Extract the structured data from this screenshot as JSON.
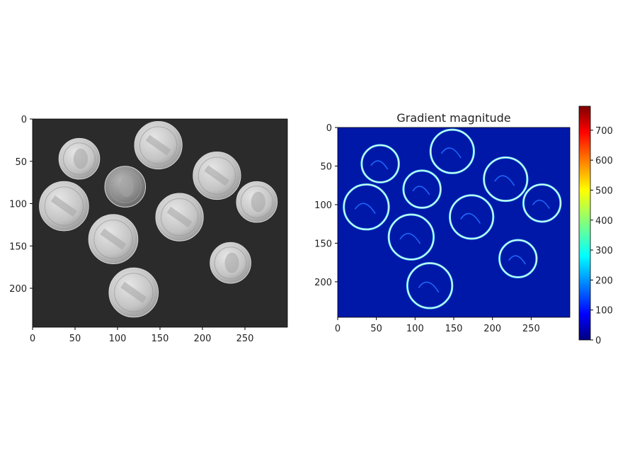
{
  "chart_data": [
    {
      "type": "image",
      "title": "",
      "xlim": [
        0,
        300
      ],
      "ylim": [
        0,
        246
      ],
      "xticks": [
        0,
        50,
        100,
        150,
        200,
        250
      ],
      "yticks": [
        0,
        50,
        100,
        150,
        200
      ],
      "colormap": "gray",
      "background_color": "#2b2b2b",
      "coins": [
        {
          "cx": 55,
          "cy": 47,
          "r": 24,
          "kind": "dime"
        },
        {
          "cx": 148,
          "cy": 31,
          "r": 28,
          "kind": "nickel"
        },
        {
          "cx": 109,
          "cy": 80,
          "r": 24,
          "kind": "dime-dark"
        },
        {
          "cx": 217,
          "cy": 67,
          "r": 28,
          "kind": "nickel"
        },
        {
          "cx": 37,
          "cy": 103,
          "r": 29,
          "kind": "nickel"
        },
        {
          "cx": 264,
          "cy": 98,
          "r": 24,
          "kind": "dime"
        },
        {
          "cx": 173,
          "cy": 116,
          "r": 28,
          "kind": "nickel"
        },
        {
          "cx": 95,
          "cy": 142,
          "r": 29,
          "kind": "nickel"
        },
        {
          "cx": 233,
          "cy": 170,
          "r": 24,
          "kind": "dime"
        },
        {
          "cx": 119,
          "cy": 205,
          "r": 29,
          "kind": "nickel"
        }
      ]
    },
    {
      "type": "heatmap",
      "title": "Gradient magnitude",
      "xlim": [
        0,
        300
      ],
      "ylim": [
        0,
        246
      ],
      "xticks": [
        0,
        50,
        100,
        150,
        200,
        250
      ],
      "yticks": [
        0,
        50,
        100,
        150,
        200
      ],
      "colormap": "jet",
      "background_color": "#0018a8",
      "colorbar": {
        "range": [
          0,
          780
        ],
        "ticks": [
          0,
          100,
          200,
          300,
          400,
          500,
          600,
          700
        ]
      },
      "rings": [
        {
          "cx": 55,
          "cy": 47,
          "r": 24
        },
        {
          "cx": 148,
          "cy": 31,
          "r": 28
        },
        {
          "cx": 109,
          "cy": 80,
          "r": 24
        },
        {
          "cx": 217,
          "cy": 67,
          "r": 28
        },
        {
          "cx": 37,
          "cy": 103,
          "r": 29
        },
        {
          "cx": 264,
          "cy": 98,
          "r": 24
        },
        {
          "cx": 173,
          "cy": 116,
          "r": 28
        },
        {
          "cx": 95,
          "cy": 142,
          "r": 29
        },
        {
          "cx": 233,
          "cy": 170,
          "r": 24
        },
        {
          "cx": 119,
          "cy": 205,
          "r": 29
        }
      ]
    }
  ]
}
